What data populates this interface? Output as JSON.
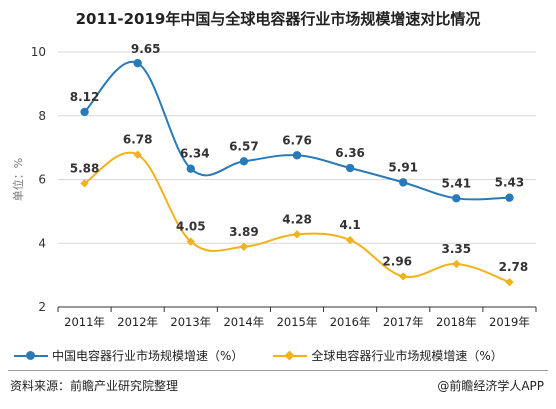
{
  "title": "2011-2019年中国与全球电容器行业市场规模增速对比情况",
  "source_text": "资料来源：前瞻产业研究院整理",
  "brand_text": "@前瞻经济学人APP",
  "colors": {
    "china": "#2a7ab8",
    "global": "#f2b21b",
    "grid": "#d9d9d9",
    "axis": "#333333"
  },
  "chart_data": {
    "type": "line",
    "title": "2011-2019年中国与全球电容器行业市场规模增速对比情况",
    "xlabel": "",
    "ylabel": "单位：%",
    "ylim": [
      2,
      10
    ],
    "yticks": [
      2,
      4,
      6,
      8,
      10
    ],
    "categories": [
      "2011年",
      "2012年",
      "2013年",
      "2014年",
      "2015年",
      "2016年",
      "2017年",
      "2018年",
      "2019年"
    ],
    "grid": true,
    "legend": "bottom",
    "series": [
      {
        "name": "中国电容器行业市场规模增速（%）",
        "marker": "circle",
        "values": [
          8.12,
          9.65,
          6.34,
          6.57,
          6.76,
          6.36,
          5.91,
          5.41,
          5.43
        ],
        "labels": [
          "8.12",
          "9.65",
          "6.34",
          "6.57",
          "6.76",
          "6.36",
          "5.91",
          "5.41",
          "5.43"
        ]
      },
      {
        "name": "全球电容器行业市场规模增速（%）",
        "marker": "diamond",
        "values": [
          5.88,
          6.78,
          4.05,
          3.89,
          4.28,
          4.1,
          2.96,
          3.35,
          2.78
        ],
        "labels": [
          "5.88",
          "6.78",
          "4.05",
          "3.89",
          "4.28",
          "4.1",
          "2.96",
          "3.35",
          "2.78"
        ]
      }
    ]
  }
}
